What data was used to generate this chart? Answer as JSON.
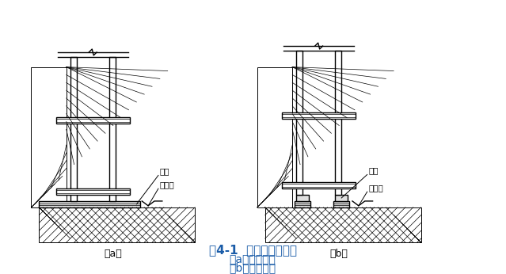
{
  "title_line1": "图4-1  普通脚手架基底",
  "title_line2": "（a）横铺垫板",
  "title_line3": "（b）顺铺垫板",
  "label_a": "（a）",
  "label_b": "（b）",
  "label_dianmu": "垫木",
  "label_paishui": "排水沟",
  "bg_color": "#ffffff",
  "line_color": "#000000",
  "title_color": "#1a5ca8",
  "font_cn": "SimHei"
}
